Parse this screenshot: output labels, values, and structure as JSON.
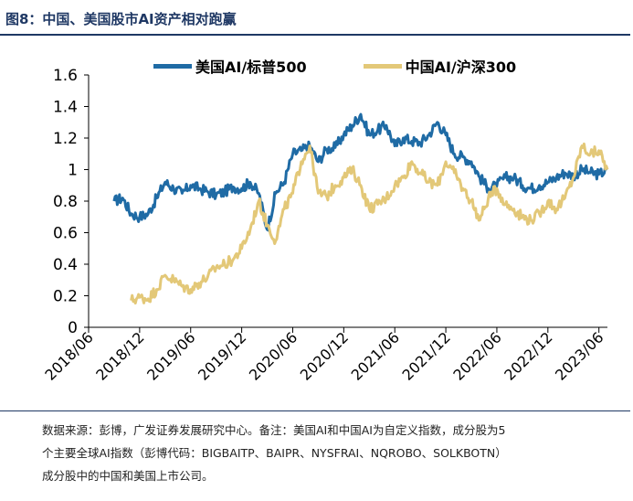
{
  "figure": {
    "title": "图8：中国、美国股市AI资产相对跑赢"
  },
  "footer": {
    "line1": "数据来源：彭博，广发证券发展研究中心。备注：美国AI和中国AI为自定义指数，成分股为5",
    "line2": "个主要全球AI指数（彭博代码：BIGBAITP、BAIPR、NYSFRAI、NQROBO、SOLKBOTN）",
    "line3": "成分股中的中国和美国上市公司。"
  },
  "chart_data": {
    "type": "line",
    "title": "",
    "xlabel": "",
    "ylabel": "",
    "ylim": [
      0,
      1.6
    ],
    "yticks": [
      "0",
      "0.2",
      "0.4",
      "0.6",
      "0.8",
      "1",
      "1.2",
      "1.4",
      "1.6"
    ],
    "xticks": [
      "2018/06",
      "2018/12",
      "2019/06",
      "2019/12",
      "2020/06",
      "2020/12",
      "2021/06",
      "2021/12",
      "2022/06",
      "2022/12",
      "2023/06"
    ],
    "xlim": [
      "2018-06",
      "2023-07"
    ],
    "grid": false,
    "legend_position": "top",
    "series": [
      {
        "name": "美国AI/标普500",
        "color": "#1f6ba5",
        "x": [
          "2018-09",
          "2018-10",
          "2018-11",
          "2018-12",
          "2019-01",
          "2019-02",
          "2019-03",
          "2019-04",
          "2019-05",
          "2019-06",
          "2019-07",
          "2019-08",
          "2019-09",
          "2019-10",
          "2019-11",
          "2019-12",
          "2020-01",
          "2020-02",
          "2020-03",
          "2020-04",
          "2020-05",
          "2020-06",
          "2020-07",
          "2020-08",
          "2020-09",
          "2020-10",
          "2020-11",
          "2020-12",
          "2021-01",
          "2021-02",
          "2021-03",
          "2021-04",
          "2021-05",
          "2021-06",
          "2021-07",
          "2021-08",
          "2021-09",
          "2021-10",
          "2021-11",
          "2021-12",
          "2022-01",
          "2022-02",
          "2022-03",
          "2022-04",
          "2022-05",
          "2022-06",
          "2022-07",
          "2022-08",
          "2022-09",
          "2022-10",
          "2022-11",
          "2022-12",
          "2023-01",
          "2023-02",
          "2023-03",
          "2023-04",
          "2023-05",
          "2023-06",
          "2023-07"
        ],
        "values": [
          0.8,
          0.82,
          0.72,
          0.7,
          0.72,
          0.82,
          0.92,
          0.88,
          0.85,
          0.9,
          0.88,
          0.86,
          0.84,
          0.86,
          0.89,
          0.88,
          0.92,
          0.85,
          0.62,
          0.85,
          0.92,
          1.1,
          1.12,
          1.15,
          1.05,
          1.13,
          1.14,
          1.22,
          1.28,
          1.35,
          1.22,
          1.25,
          1.28,
          1.15,
          1.2,
          1.18,
          1.17,
          1.22,
          1.3,
          1.22,
          1.1,
          1.08,
          1.05,
          0.95,
          0.88,
          0.9,
          0.95,
          0.95,
          0.9,
          0.88,
          0.9,
          0.92,
          0.95,
          0.98,
          0.96,
          1.0,
          0.98,
          0.97,
          1.0
        ]
      },
      {
        "name": "中国AI/沪深300",
        "color": "#e3c878",
        "x": [
          "2018-11",
          "2018-12",
          "2019-01",
          "2019-02",
          "2019-03",
          "2019-04",
          "2019-05",
          "2019-06",
          "2019-07",
          "2019-08",
          "2019-09",
          "2019-10",
          "2019-11",
          "2019-12",
          "2020-01",
          "2020-02",
          "2020-03",
          "2020-04",
          "2020-05",
          "2020-06",
          "2020-07",
          "2020-08",
          "2020-09",
          "2020-10",
          "2020-11",
          "2020-12",
          "2021-01",
          "2021-02",
          "2021-03",
          "2021-04",
          "2021-05",
          "2021-06",
          "2021-07",
          "2021-08",
          "2021-09",
          "2021-10",
          "2021-11",
          "2021-12",
          "2022-01",
          "2022-02",
          "2022-03",
          "2022-04",
          "2022-05",
          "2022-06",
          "2022-07",
          "2022-08",
          "2022-09",
          "2022-10",
          "2022-11",
          "2022-12",
          "2023-01",
          "2023-02",
          "2023-03",
          "2023-04",
          "2023-05",
          "2023-06",
          "2023-07"
        ],
        "values": [
          0.17,
          0.19,
          0.18,
          0.24,
          0.33,
          0.3,
          0.26,
          0.24,
          0.28,
          0.32,
          0.38,
          0.4,
          0.43,
          0.5,
          0.62,
          0.8,
          0.65,
          0.55,
          0.75,
          0.85,
          1.05,
          1.15,
          0.85,
          0.83,
          0.9,
          0.95,
          1.0,
          0.9,
          0.75,
          0.78,
          0.82,
          0.9,
          0.95,
          1.05,
          0.98,
          0.92,
          0.9,
          1.05,
          0.98,
          0.88,
          0.8,
          0.68,
          0.82,
          0.88,
          0.78,
          0.75,
          0.7,
          0.68,
          0.72,
          0.8,
          0.75,
          0.82,
          0.95,
          1.15,
          1.1,
          1.12,
          1.0
        ]
      }
    ]
  }
}
